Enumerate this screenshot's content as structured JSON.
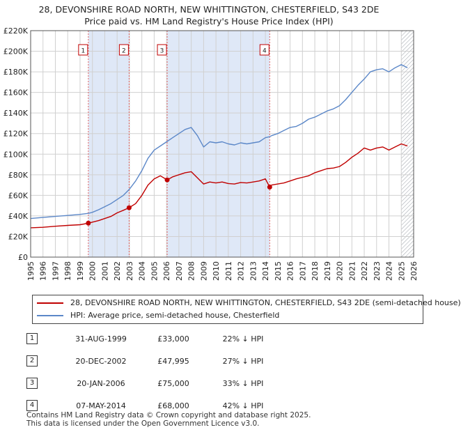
{
  "title_line1": "28, DEVONSHIRE ROAD NORTH, NEW WHITTINGTON, CHESTERFIELD, S43 2DE",
  "title_line2": "Price paid vs. HM Land Registry's House Price Index (HPI)",
  "chart_data": {
    "type": "line",
    "title": "28, DEVONSHIRE ROAD NORTH, NEW WHITTINGTON, CHESTERFIELD, S43 2DE — Price paid vs. HM Land Registry's House Price Index (HPI)",
    "xlabel": "",
    "ylabel": "",
    "xlim": [
      1995,
      2026
    ],
    "ylim": [
      0,
      220000
    ],
    "y_ticks": [
      0,
      20000,
      40000,
      60000,
      80000,
      100000,
      120000,
      140000,
      160000,
      180000,
      200000,
      220000
    ],
    "y_tick_labels": [
      "£0",
      "£20K",
      "£40K",
      "£60K",
      "£80K",
      "£100K",
      "£120K",
      "£140K",
      "£160K",
      "£180K",
      "£200K",
      "£220K"
    ],
    "x_ticks": [
      1995,
      1996,
      1997,
      1998,
      1999,
      2000,
      2001,
      2002,
      2003,
      2004,
      2005,
      2006,
      2007,
      2008,
      2009,
      2010,
      2011,
      2012,
      2013,
      2014,
      2015,
      2016,
      2017,
      2018,
      2019,
      2020,
      2021,
      2022,
      2023,
      2024,
      2025,
      2026
    ],
    "grid": true,
    "shaded_periods": [
      [
        1999.67,
        2002.97
      ],
      [
        2006.05,
        2014.35
      ]
    ],
    "hatch_from": 2025.0,
    "series": [
      {
        "name": "HPI: Average price, semi-detached house, Chesterfield",
        "color": "#5b87c8",
        "x": [
          1995.0,
          1996.0,
          1997.0,
          1998.0,
          1999.0,
          1999.67,
          2000.0,
          2000.5,
          2001.0,
          2001.5,
          2002.0,
          2002.5,
          2003.0,
          2003.5,
          2004.0,
          2004.5,
          2005.0,
          2005.5,
          2006.0,
          2006.5,
          2007.0,
          2007.5,
          2008.0,
          2008.5,
          2009.0,
          2009.5,
          2010.0,
          2010.5,
          2011.0,
          2011.5,
          2012.0,
          2012.5,
          2013.0,
          2013.5,
          2014.0,
          2014.35,
          2014.5,
          2015.0,
          2015.5,
          2016.0,
          2016.5,
          2017.0,
          2017.5,
          2018.0,
          2018.5,
          2019.0,
          2019.5,
          2020.0,
          2020.5,
          2021.0,
          2021.5,
          2022.0,
          2022.5,
          2023.0,
          2023.5,
          2024.0,
          2024.5,
          2025.0,
          2025.5
        ],
        "values": [
          37500,
          38500,
          39500,
          40500,
          41500,
          42500,
          43500,
          46000,
          49000,
          52000,
          56000,
          60000,
          66000,
          74000,
          84000,
          96000,
          104000,
          108000,
          112000,
          116000,
          120000,
          124000,
          126000,
          118000,
          107000,
          112000,
          111000,
          112000,
          110000,
          109000,
          111000,
          110000,
          111000,
          112000,
          116000,
          117000,
          118000,
          120000,
          123000,
          126000,
          127000,
          130000,
          134000,
          136000,
          139000,
          142000,
          144000,
          147000,
          153000,
          160000,
          167000,
          173000,
          180000,
          182000,
          183000,
          180000,
          184000,
          187000,
          184000
        ]
      },
      {
        "name": "28, DEVONSHIRE ROAD NORTH, NEW WHITTINGTON, CHESTERFIELD, S43 2DE (semi-detached house)",
        "color": "#c00000",
        "x": [
          1995.0,
          1996.0,
          1997.0,
          1998.0,
          1999.0,
          1999.67,
          2000.0,
          2000.5,
          2001.0,
          2001.5,
          2002.0,
          2002.5,
          2002.97,
          2003.5,
          2004.0,
          2004.5,
          2005.0,
          2005.5,
          2006.05,
          2006.5,
          2007.0,
          2007.5,
          2008.0,
          2008.5,
          2009.0,
          2009.5,
          2010.0,
          2010.5,
          2011.0,
          2011.5,
          2012.0,
          2012.5,
          2013.0,
          2013.5,
          2014.0,
          2014.35,
          2014.5,
          2015.0,
          2015.5,
          2016.0,
          2016.5,
          2017.0,
          2017.5,
          2018.0,
          2018.5,
          2019.0,
          2019.5,
          2020.0,
          2020.5,
          2021.0,
          2021.5,
          2022.0,
          2022.5,
          2023.0,
          2023.5,
          2024.0,
          2024.5,
          2025.0,
          2025.5
        ],
        "values": [
          28500,
          29000,
          30000,
          30800,
          31500,
          33000,
          34000,
          35500,
          37500,
          39500,
          43000,
          45500,
          47995,
          52000,
          60000,
          70000,
          76000,
          79000,
          75000,
          78000,
          80000,
          82000,
          83000,
          77000,
          71000,
          73000,
          72000,
          73000,
          71500,
          71000,
          72500,
          72000,
          73000,
          74000,
          76000,
          68000,
          70000,
          71000,
          72000,
          74000,
          76000,
          77500,
          79000,
          82000,
          84000,
          86000,
          86500,
          88000,
          92000,
          97000,
          101000,
          106000,
          104000,
          106000,
          107000,
          104000,
          107000,
          110000,
          108000
        ]
      }
    ],
    "sale_points": [
      {
        "num": "1",
        "x": 1999.67,
        "value": 33000
      },
      {
        "num": "2",
        "x": 2002.97,
        "value": 47995
      },
      {
        "num": "3",
        "x": 2006.05,
        "value": 75000
      },
      {
        "num": "4",
        "x": 2014.35,
        "value": 68000
      }
    ]
  },
  "legend": {
    "property_label": "28, DEVONSHIRE ROAD NORTH, NEW WHITTINGTON, CHESTERFIELD, S43 2DE (semi-detached house)",
    "hpi_label": "HPI: Average price, semi-detached house, Chesterfield",
    "property_color": "#c00000",
    "hpi_color": "#5b87c8"
  },
  "transactions": [
    {
      "num": "1",
      "date": "31-AUG-1999",
      "price": "£33,000",
      "hpi": "22% ↓ HPI"
    },
    {
      "num": "2",
      "date": "20-DEC-2002",
      "price": "£47,995",
      "hpi": "27% ↓ HPI"
    },
    {
      "num": "3",
      "date": "20-JAN-2006",
      "price": "£75,000",
      "hpi": "33% ↓ HPI"
    },
    {
      "num": "4",
      "date": "07-MAY-2014",
      "price": "£68,000",
      "hpi": "42% ↓ HPI"
    }
  ],
  "footer": {
    "line1": "Contains HM Land Registry data © Crown copyright and database right 2025.",
    "line2": "This data is licensed under the Open Government Licence v3.0."
  }
}
